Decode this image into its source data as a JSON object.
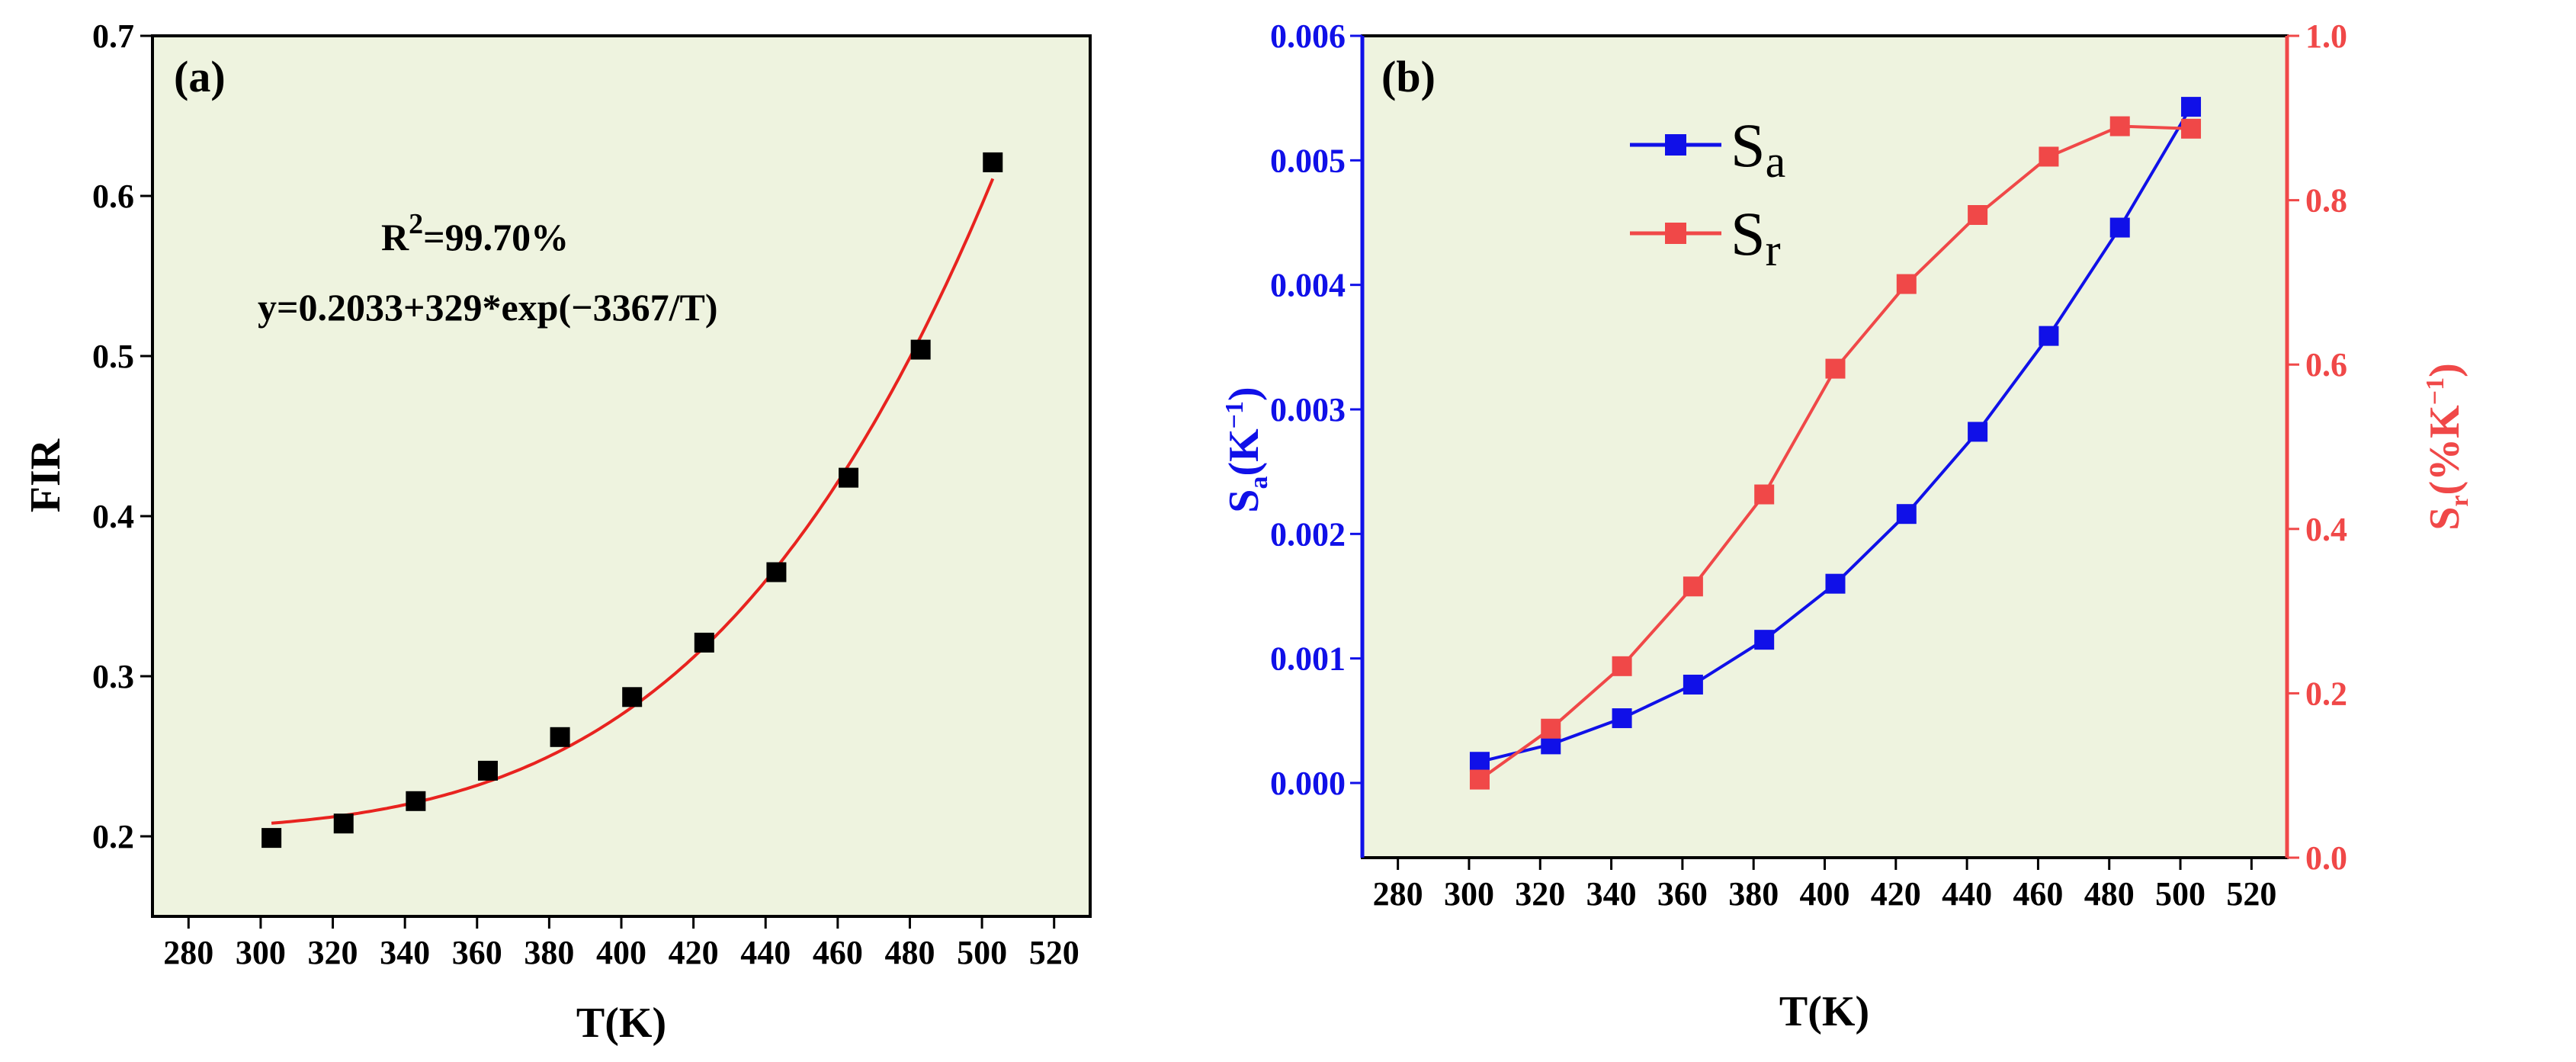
{
  "colors": {
    "plot_bg": "#eef3df",
    "fit_line": "#e8231f",
    "sa": "#1010e8",
    "sr": "#f04848",
    "axis": "#000000"
  },
  "chart_data": [
    {
      "panel": "(a)",
      "type": "scatter",
      "xlabel": "T(K)",
      "ylabel": "FIR",
      "xlim": [
        270,
        530
      ],
      "ylim": [
        0.15,
        0.7
      ],
      "xticks": [
        280,
        300,
        320,
        340,
        360,
        380,
        400,
        420,
        440,
        460,
        480,
        500,
        520
      ],
      "yticks": [
        0.2,
        0.3,
        0.4,
        0.5,
        0.6,
        0.7
      ],
      "ytick_labels": [
        "0.2",
        "0.3",
        "0.4",
        "0.5",
        "0.6",
        "0.7"
      ],
      "series": [
        {
          "name": "FIR",
          "marker": "square",
          "x": [
            303,
            323,
            343,
            363,
            383,
            403,
            423,
            443,
            463,
            483,
            503
          ],
          "y": [
            0.199,
            0.208,
            0.222,
            0.241,
            0.262,
            0.287,
            0.321,
            0.365,
            0.424,
            0.504,
            0.621
          ]
        }
      ],
      "fit": {
        "a": 0.2033,
        "b": 329,
        "c": 3367,
        "x_range": [
          303,
          503
        ]
      },
      "annotations": {
        "r2_base": "R",
        "r2_sup": "2",
        "r2_value": "=99.70%",
        "equation": "y=0.2033+329*exp(−3367/T)"
      }
    },
    {
      "panel": "(b)",
      "type": "line",
      "xlabel": "T(K)",
      "xlim": [
        270,
        530
      ],
      "xticks": [
        280,
        300,
        320,
        340,
        360,
        380,
        400,
        420,
        440,
        460,
        480,
        500,
        520
      ],
      "y_left": {
        "label_main": "S",
        "label_sub": "a",
        "label_rest": "(K",
        "label_sup": "−1",
        "label_end": ")",
        "lim": [
          -0.0006,
          0.006
        ],
        "ticks": [
          0.0,
          0.001,
          0.002,
          0.003,
          0.004,
          0.005,
          0.006
        ],
        "tick_labels": [
          "0.000",
          "0.001",
          "0.002",
          "0.003",
          "0.004",
          "0.005",
          "0.006"
        ]
      },
      "y_right": {
        "label_main": "S",
        "label_sub": "r",
        "label_rest": "(%K",
        "label_sup": "−1",
        "label_end": ")",
        "lim": [
          0.0,
          1.0
        ],
        "ticks": [
          0.0,
          0.2,
          0.4,
          0.6,
          0.8,
          1.0
        ],
        "tick_labels": [
          "0.0",
          "0.2",
          "0.4",
          "0.6",
          "0.8",
          "1.0"
        ]
      },
      "series": [
        {
          "name": "Sa",
          "legend_main": "S",
          "legend_sub": "a",
          "axis": "left",
          "x": [
            303,
            323,
            343,
            363,
            383,
            403,
            423,
            443,
            463,
            483,
            503
          ],
          "y": [
            0.00017,
            0.00031,
            0.00052,
            0.00079,
            0.00115,
            0.0016,
            0.00216,
            0.00282,
            0.00359,
            0.00446,
            0.00543
          ]
        },
        {
          "name": "Sr",
          "legend_main": "S",
          "legend_sub": "r",
          "axis": "right",
          "x": [
            303,
            323,
            343,
            363,
            383,
            403,
            423,
            443,
            463,
            483,
            503
          ],
          "y": [
            0.095,
            0.157,
            0.233,
            0.33,
            0.442,
            0.595,
            0.698,
            0.782,
            0.853,
            0.89,
            0.887
          ]
        }
      ]
    }
  ]
}
